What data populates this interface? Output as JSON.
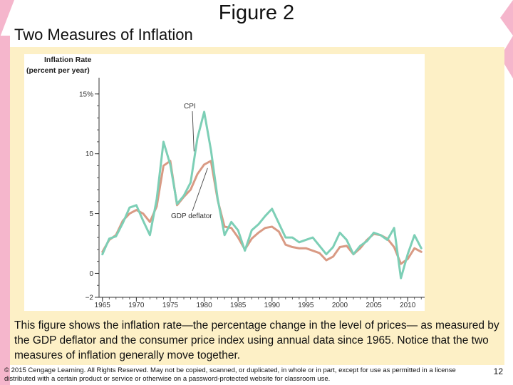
{
  "slide": {
    "title": "Figure 2",
    "subtitle": "Two Measures of Inflation",
    "caption": "This figure shows the inflation rate—the percentage change in the level of prices— as measured by the GDP deflator and the consumer price index using annual data since 1965. Notice that the two measures of inflation generally move together.",
    "footer": "© 2015 Cengage Learning. All Rights Reserved. May not be copied, scanned, or duplicated, in whole or in part, except for use as permitted in a license distributed with a certain product or service or otherwise on a password-protected website for classroom use.",
    "page_number": "12"
  },
  "colors": {
    "cpi": "#7dcfb6",
    "gdp_deflator": "#d99a84",
    "panel": "#fdf0c6",
    "accent_pink": "#f5b6cc"
  },
  "chart_data": {
    "type": "line",
    "ylabel_line1": "Inflation Rate",
    "ylabel_line2": "(percent per year)",
    "ylim": [
      -2,
      16
    ],
    "xlim": [
      1964.5,
      2012.5
    ],
    "y_ticks": [
      {
        "value": 15,
        "label": "15%"
      },
      {
        "value": 10,
        "label": "10"
      },
      {
        "value": 5,
        "label": "5"
      },
      {
        "value": 0,
        "label": "0"
      },
      {
        "value": -2,
        "label": "−2"
      }
    ],
    "x_ticks": [
      1965,
      1970,
      1975,
      1980,
      1985,
      1990,
      1995,
      2000,
      2005,
      2010
    ],
    "annotations": [
      {
        "text": "CPI",
        "series": "CPI"
      },
      {
        "text": "GDP deflator",
        "series": "GDP deflator"
      }
    ],
    "x": [
      1965,
      1966,
      1967,
      1968,
      1969,
      1970,
      1971,
      1972,
      1973,
      1974,
      1975,
      1976,
      1977,
      1978,
      1979,
      1980,
      1981,
      1982,
      1983,
      1984,
      1985,
      1986,
      1987,
      1988,
      1989,
      1990,
      1991,
      1992,
      1993,
      1994,
      1995,
      1996,
      1997,
      1998,
      1999,
      2000,
      2001,
      2002,
      2003,
      2004,
      2005,
      2006,
      2007,
      2008,
      2009,
      2010,
      2011,
      2012
    ],
    "series": [
      {
        "name": "CPI",
        "values": [
          1.6,
          2.9,
          3.1,
          4.2,
          5.5,
          5.7,
          4.4,
          3.2,
          6.2,
          11.0,
          9.1,
          5.8,
          6.5,
          7.6,
          11.3,
          13.5,
          10.3,
          6.2,
          3.2,
          4.3,
          3.6,
          1.9,
          3.6,
          4.1,
          4.8,
          5.4,
          4.2,
          3.0,
          3.0,
          2.6,
          2.8,
          3.0,
          2.3,
          1.6,
          2.2,
          3.4,
          2.8,
          1.6,
          2.3,
          2.7,
          3.4,
          3.2,
          2.8,
          3.8,
          -0.4,
          1.6,
          3.2,
          2.1
        ]
      },
      {
        "name": "GDP deflator",
        "values": [
          1.8,
          2.8,
          3.2,
          4.4,
          5.0,
          5.3,
          5.0,
          4.3,
          5.6,
          9.0,
          9.4,
          5.7,
          6.4,
          7.0,
          8.3,
          9.1,
          9.4,
          6.1,
          3.9,
          3.8,
          3.0,
          2.0,
          2.9,
          3.4,
          3.8,
          3.9,
          3.5,
          2.4,
          2.2,
          2.1,
          2.1,
          1.9,
          1.7,
          1.1,
          1.4,
          2.2,
          2.3,
          1.6,
          2.1,
          2.8,
          3.3,
          3.2,
          2.9,
          2.2,
          0.8,
          1.2,
          2.1,
          1.8
        ]
      }
    ]
  }
}
